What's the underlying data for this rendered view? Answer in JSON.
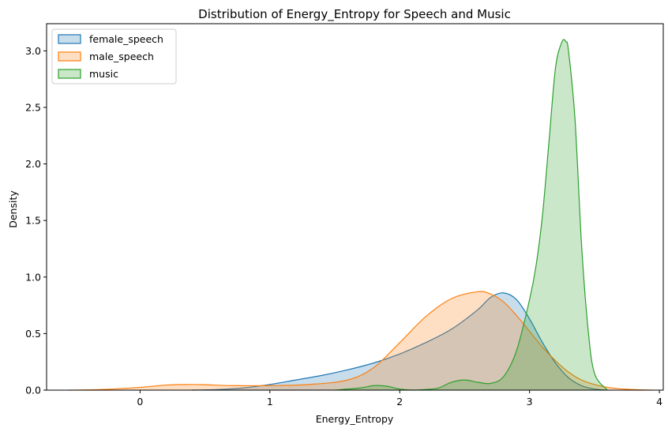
{
  "chart_data": {
    "type": "area",
    "title": "Distribution of Energy_Entropy for Speech and Music",
    "xlabel": "Energy_Entropy",
    "ylabel": "Density",
    "xlim": [
      -0.72,
      4.03
    ],
    "ylim": [
      0,
      3.24
    ],
    "x_ticks": [
      0,
      1,
      2,
      3,
      4
    ],
    "y_ticks": [
      0.0,
      0.5,
      1.0,
      1.5,
      2.0,
      2.5,
      3.0
    ],
    "x_tick_labels": [
      "0",
      "1",
      "2",
      "3",
      "4"
    ],
    "y_tick_labels": [
      "0.0",
      "0.5",
      "1.0",
      "1.5",
      "2.0",
      "2.5",
      "3.0"
    ],
    "grid": false,
    "legend_position": "top-left",
    "series": [
      {
        "name": "female_speech",
        "color": "#1f77b4",
        "x": [
          0.4,
          0.6,
          0.8,
          1.0,
          1.2,
          1.4,
          1.6,
          1.8,
          2.0,
          2.2,
          2.4,
          2.6,
          2.7,
          2.8,
          2.9,
          3.0,
          3.1,
          3.2,
          3.3,
          3.4,
          3.5,
          3.6
        ],
        "y": [
          0.0,
          0.005,
          0.02,
          0.05,
          0.09,
          0.13,
          0.18,
          0.24,
          0.32,
          0.42,
          0.54,
          0.71,
          0.82,
          0.86,
          0.8,
          0.63,
          0.42,
          0.24,
          0.11,
          0.04,
          0.01,
          0.0
        ]
      },
      {
        "name": "male_speech",
        "color": "#ff7f0e",
        "x": [
          -0.55,
          -0.3,
          0.0,
          0.2,
          0.35,
          0.5,
          0.7,
          1.0,
          1.3,
          1.6,
          1.8,
          2.0,
          2.2,
          2.4,
          2.6,
          2.7,
          2.8,
          2.9,
          3.0,
          3.1,
          3.2,
          3.3,
          3.4,
          3.5,
          3.6,
          3.75,
          3.95
        ],
        "y": [
          0.0,
          0.005,
          0.025,
          0.045,
          0.05,
          0.048,
          0.04,
          0.04,
          0.05,
          0.09,
          0.2,
          0.42,
          0.65,
          0.81,
          0.87,
          0.85,
          0.78,
          0.66,
          0.52,
          0.38,
          0.26,
          0.16,
          0.09,
          0.05,
          0.025,
          0.008,
          0.0
        ]
      },
      {
        "name": "music",
        "color": "#2ca02c",
        "x": [
          1.5,
          1.7,
          1.8,
          1.9,
          2.0,
          2.1,
          2.2,
          2.3,
          2.4,
          2.5,
          2.6,
          2.7,
          2.8,
          2.9,
          3.0,
          3.05,
          3.1,
          3.15,
          3.2,
          3.25,
          3.28,
          3.3,
          3.35,
          3.4,
          3.45,
          3.5,
          3.6
        ],
        "y": [
          0.0,
          0.02,
          0.04,
          0.035,
          0.01,
          0.0,
          0.005,
          0.02,
          0.07,
          0.09,
          0.07,
          0.06,
          0.12,
          0.35,
          0.8,
          1.1,
          1.55,
          2.2,
          2.85,
          3.08,
          3.08,
          3.0,
          2.4,
          1.3,
          0.55,
          0.15,
          0.0
        ]
      }
    ]
  }
}
